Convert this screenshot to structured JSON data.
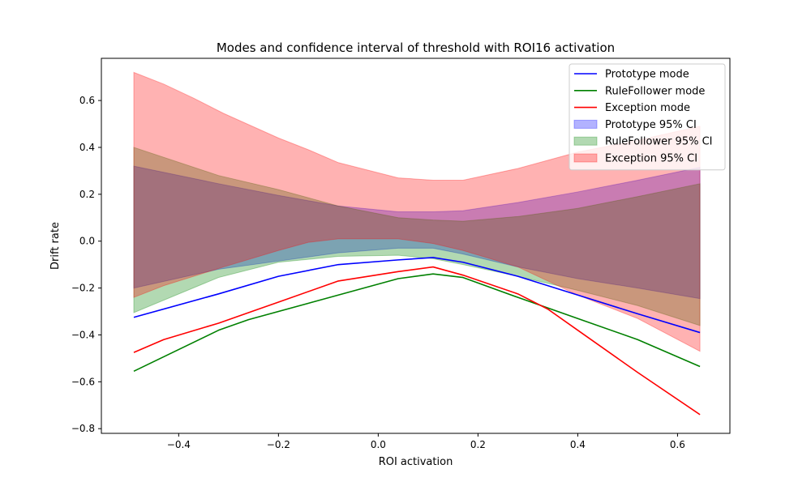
{
  "chart_data": {
    "type": "line",
    "title": "Modes and confidence interval of threshold with ROI16 activation",
    "xlabel": "ROI activation",
    "ylabel": "Drift rate",
    "xlim": [
      -0.555,
      0.705
    ],
    "ylim": [
      -0.82,
      0.78
    ],
    "xticks": [
      -0.4,
      -0.2,
      0.0,
      0.2,
      0.4,
      0.6
    ],
    "yticks": [
      -0.8,
      -0.6,
      -0.4,
      -0.2,
      0.0,
      0.2,
      0.4,
      0.6
    ],
    "xtick_labels": [
      "−0.4",
      "−0.2",
      "0.0",
      "0.2",
      "0.4",
      "0.6"
    ],
    "ytick_labels": [
      "−0.8",
      "−0.6",
      "−0.4",
      "−0.2",
      "0.0",
      "0.2",
      "0.4",
      "0.6"
    ],
    "grid": false,
    "legend_position": "top-right",
    "lines": [
      {
        "name": "Prototype mode",
        "color": "#0000ff",
        "x": [
          -0.49,
          -0.32,
          -0.2,
          -0.08,
          0.04,
          0.11,
          0.17,
          0.28,
          0.4,
          0.52,
          0.645
        ],
        "y": [
          -0.325,
          -0.225,
          -0.15,
          -0.1,
          -0.08,
          -0.07,
          -0.09,
          -0.15,
          -0.23,
          -0.31,
          -0.39
        ]
      },
      {
        "name": "RuleFollower mode",
        "color": "#008000",
        "x": [
          -0.49,
          -0.32,
          -0.26,
          -0.08,
          0.04,
          0.11,
          0.17,
          0.28,
          0.4,
          0.52,
          0.645
        ],
        "y": [
          -0.555,
          -0.38,
          -0.335,
          -0.23,
          -0.16,
          -0.14,
          -0.155,
          -0.24,
          -0.33,
          -0.42,
          -0.535
        ]
      },
      {
        "name": "Exception mode",
        "color": "#ff0000",
        "x": [
          -0.49,
          -0.43,
          -0.32,
          -0.2,
          -0.08,
          0.04,
          0.11,
          0.17,
          0.28,
          0.34,
          0.4,
          0.52,
          0.645
        ],
        "y": [
          -0.475,
          -0.42,
          -0.35,
          -0.26,
          -0.17,
          -0.13,
          -0.11,
          -0.145,
          -0.225,
          -0.29,
          -0.38,
          -0.56,
          -0.74
        ]
      }
    ],
    "bands": [
      {
        "name": "Prototype 95% CI",
        "color": "#0000ff",
        "x": [
          -0.49,
          -0.32,
          -0.2,
          -0.08,
          0.04,
          0.11,
          0.17,
          0.28,
          0.4,
          0.52,
          0.645
        ],
        "upper": [
          0.32,
          0.245,
          0.195,
          0.15,
          0.125,
          0.125,
          0.13,
          0.165,
          0.21,
          0.26,
          0.315
        ],
        "lower": [
          -0.2,
          -0.12,
          -0.085,
          -0.05,
          -0.03,
          -0.03,
          -0.055,
          -0.11,
          -0.16,
          -0.2,
          -0.245
        ]
      },
      {
        "name": "RuleFollower 95% CI",
        "color": "#008000",
        "x": [
          -0.49,
          -0.32,
          -0.2,
          -0.08,
          0.04,
          0.11,
          0.17,
          0.28,
          0.4,
          0.52,
          0.645
        ],
        "upper": [
          0.4,
          0.28,
          0.22,
          0.15,
          0.1,
          0.09,
          0.085,
          0.105,
          0.14,
          0.19,
          0.245
        ],
        "lower": [
          -0.305,
          -0.155,
          -0.09,
          -0.065,
          -0.06,
          -0.075,
          -0.1,
          -0.15,
          -0.21,
          -0.275,
          -0.36
        ]
      },
      {
        "name": "Exception 95% CI",
        "color": "#ff0000",
        "x": [
          -0.49,
          -0.43,
          -0.37,
          -0.31,
          -0.2,
          -0.14,
          -0.08,
          0.04,
          0.11,
          0.17,
          0.28,
          0.34,
          0.4,
          0.52,
          0.645
        ],
        "upper": [
          0.72,
          0.67,
          0.61,
          0.545,
          0.44,
          0.39,
          0.335,
          0.27,
          0.26,
          0.26,
          0.31,
          0.345,
          0.38,
          0.43,
          0.49
        ],
        "lower": [
          -0.24,
          -0.19,
          -0.15,
          -0.11,
          -0.04,
          -0.005,
          0.01,
          0.01,
          -0.01,
          -0.04,
          -0.11,
          -0.17,
          -0.23,
          -0.33,
          -0.47
        ]
      }
    ]
  }
}
